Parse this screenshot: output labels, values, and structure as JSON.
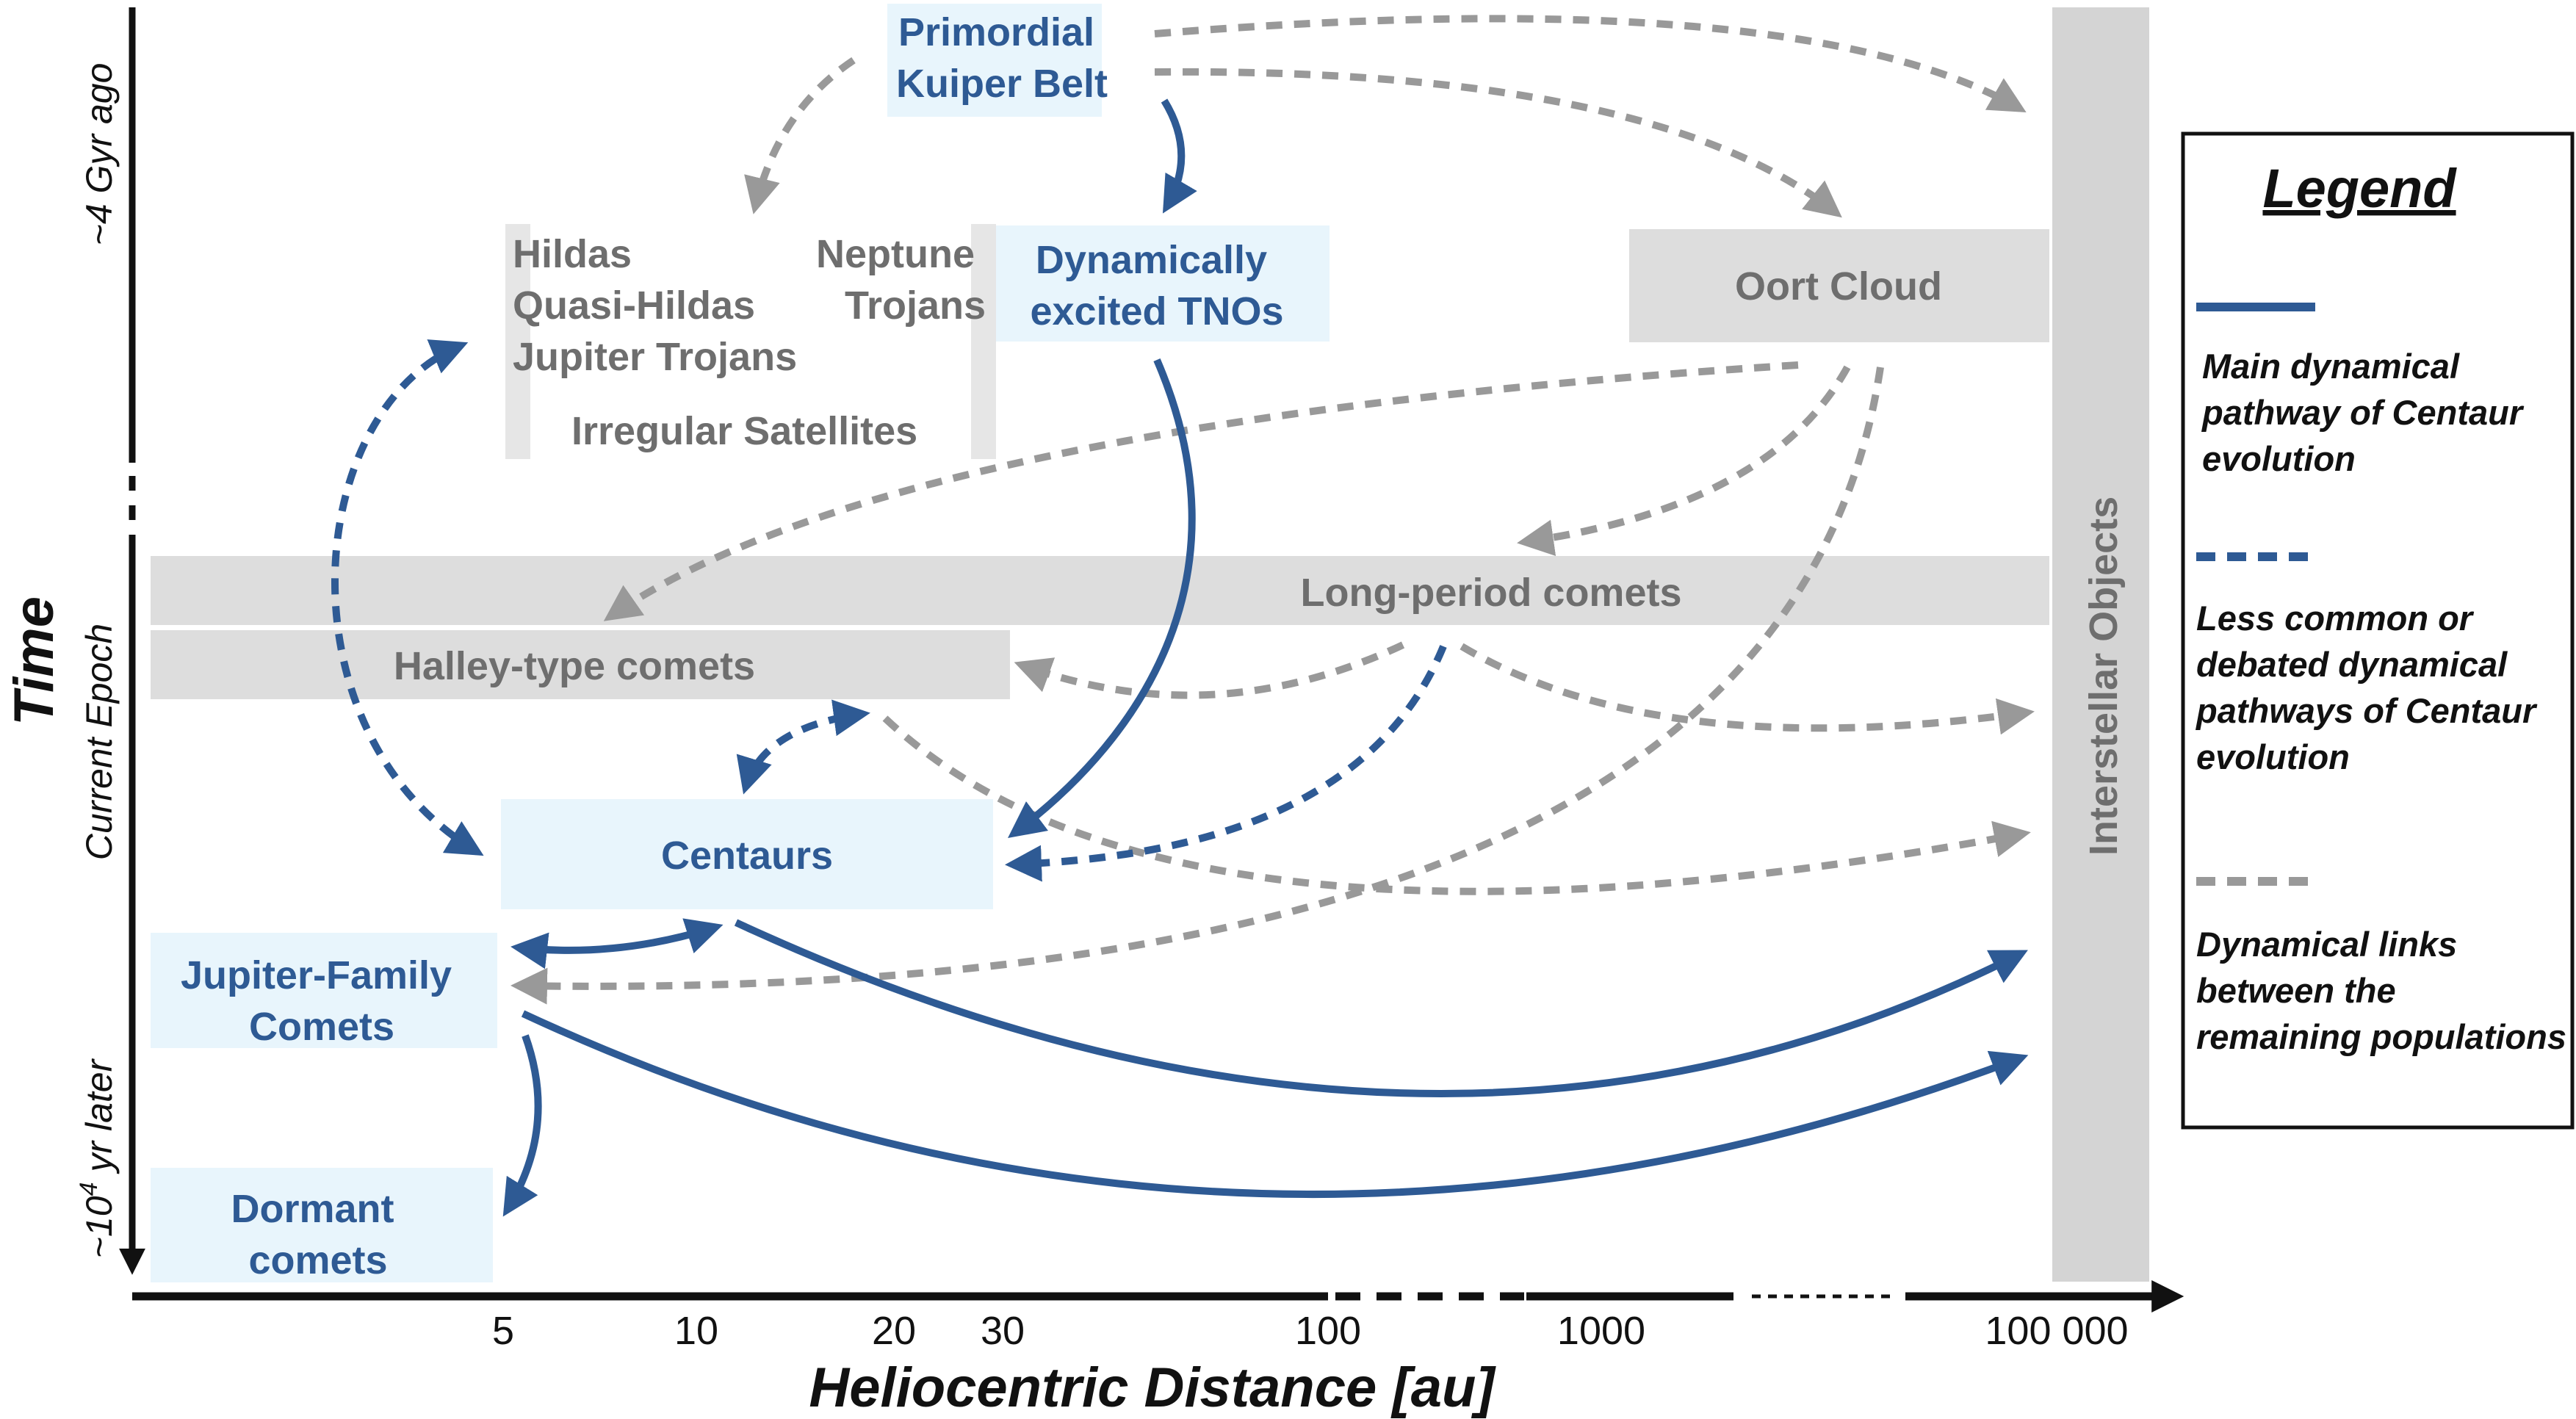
{
  "populations": {
    "primordial_kuiper_belt": [
      "Primordial",
      "Kuiper Belt"
    ],
    "dynamically_excited_tnos": [
      "Dynamically",
      "excited TNOs"
    ],
    "hildas_group": [
      "Hildas",
      "Quasi-Hildas",
      "Jupiter Trojans"
    ],
    "irregular_satellites": "Irregular Satellites",
    "neptune_trojans": [
      "Neptune",
      "Trojans"
    ],
    "oort_cloud": "Oort Cloud",
    "long_period_comets": "Long-period comets",
    "halley_type_comets": "Halley-type comets",
    "centaurs": "Centaurs",
    "jupiter_family_comets": [
      "Jupiter-Family",
      "Comets"
    ],
    "dormant_comets": [
      "Dormant",
      "comets"
    ],
    "interstellar_objects": "Interstellar Objects"
  },
  "legend": {
    "title": "Legend",
    "items": [
      {
        "style": "solid",
        "color": "#2e5a94",
        "lines": [
          "Main dynamical",
          "pathway of Centaur",
          "evolution"
        ]
      },
      {
        "style": "dashed",
        "color": "#2e5a94",
        "lines": [
          "Less common or",
          "debated dynamical",
          "pathways of Centaur",
          "evolution"
        ]
      },
      {
        "style": "dashed",
        "color": "#999999",
        "lines": [
          "Dynamical links",
          "between the",
          "remaining populations"
        ]
      }
    ]
  },
  "x_axis": {
    "title": "Heliocentric Distance [au]",
    "ticks": [
      "5",
      "10",
      "20",
      "30",
      "100",
      "1000",
      "100 000"
    ]
  },
  "y_axis": {
    "title": "Time",
    "labels": {
      "top": "~4 Gyr ago",
      "middle": "Current Epoch",
      "bottom_prefix": "~10",
      "bottom_sup": "4",
      "bottom_suffix": " yr later"
    }
  },
  "colors": {
    "main_blue": "#2e5a94",
    "gray_link": "#999999",
    "light_blue_box": "#e8f5fc",
    "gray_box": "#dddddd"
  }
}
